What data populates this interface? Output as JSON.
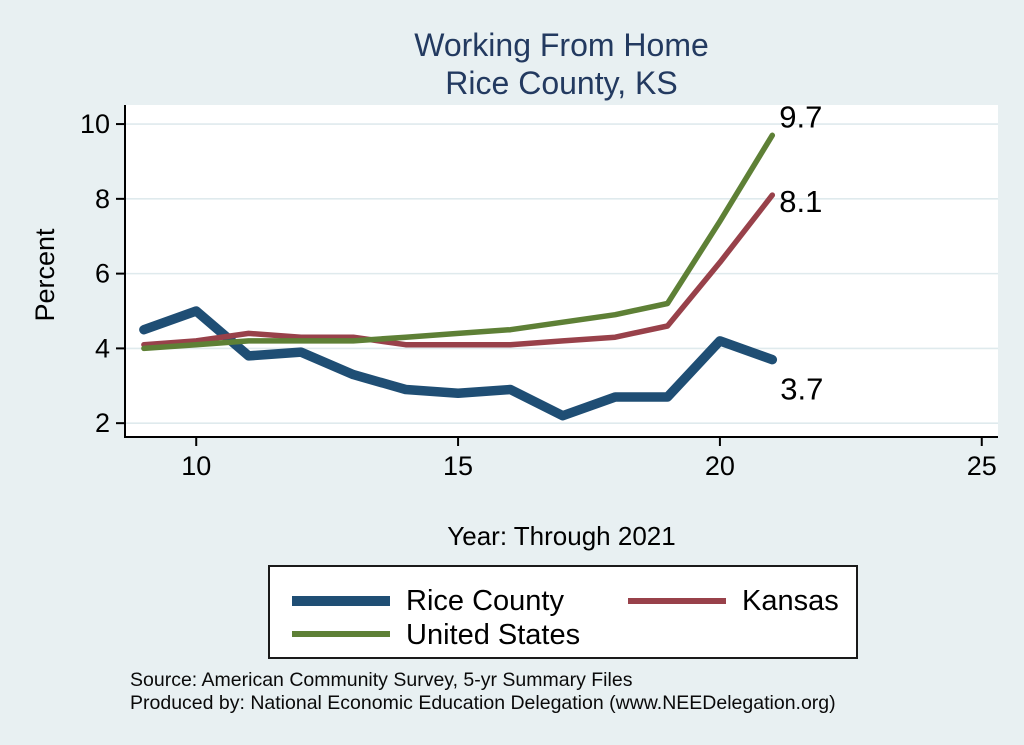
{
  "title": {
    "line1": "Working From Home",
    "line2": "Rice County, KS"
  },
  "footer": {
    "line1": "Source: American Community Survey, 5-yr Summary Files",
    "line2": "Produced by: National Economic Education Delegation (www.NEEDelegation.org)"
  },
  "colors": {
    "background": "#e8f0f2",
    "plot_background": "#ffffff",
    "gridline": "#dfeaed",
    "axis": "#000000",
    "title_text": "#233a60",
    "rice_county_blue": "#1f4e74",
    "kansas_red": "#98414a",
    "united_states_green": "#5e8036"
  },
  "chart_data": {
    "type": "line",
    "title": "Working From Home",
    "subtitle": "Rice County, KS",
    "xlabel": "Year: Through 2021",
    "ylabel": "Percent",
    "x": [
      9,
      10,
      11,
      12,
      13,
      14,
      15,
      16,
      17,
      18,
      19,
      20,
      21
    ],
    "x_ticks": [
      10,
      15,
      20,
      25
    ],
    "y_ticks": [
      2,
      4,
      6,
      8,
      10
    ],
    "xlim": [
      8.64,
      25.31
    ],
    "ylim": [
      1.63,
      10.51
    ],
    "grid": "horizontal",
    "grid_color": "#dfeaed",
    "legend_position": "bottom",
    "series": [
      {
        "name": "Rice County",
        "color": "#1f4e74",
        "stroke_width": 9.5,
        "end_label": "3.7",
        "values": [
          4.5,
          5.0,
          3.8,
          3.9,
          3.3,
          2.9,
          2.8,
          2.9,
          2.2,
          2.7,
          2.7,
          4.2,
          3.7
        ]
      },
      {
        "name": "Kansas",
        "color": "#98414a",
        "stroke_width": 5.5,
        "end_label": "8.1",
        "values": [
          4.1,
          4.2,
          4.4,
          4.3,
          4.3,
          4.1,
          4.1,
          4.1,
          4.2,
          4.3,
          4.6,
          6.3,
          8.1
        ]
      },
      {
        "name": "United States",
        "color": "#5e8036",
        "stroke_width": 5.5,
        "end_label": "9.7",
        "values": [
          4.0,
          4.1,
          4.2,
          4.2,
          4.2,
          4.3,
          4.4,
          4.5,
          4.7,
          4.9,
          5.2,
          7.4,
          9.7
        ]
      }
    ]
  }
}
